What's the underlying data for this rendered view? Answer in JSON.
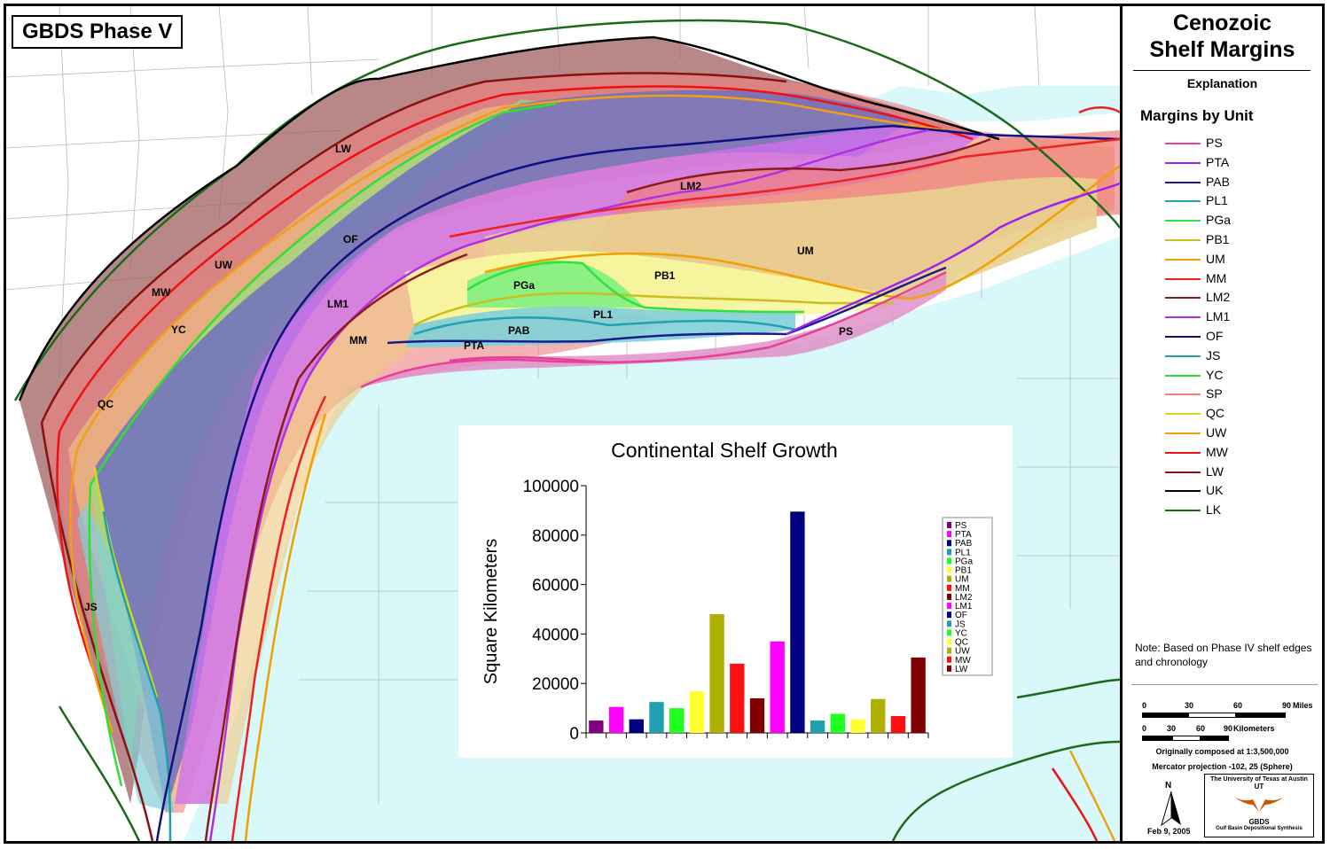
{
  "map": {
    "title": "GBDS Phase V",
    "labels": {
      "lw": "LW",
      "of": "OF",
      "uw": "UW",
      "mw": "MW",
      "yc": "YC",
      "qc": "QC",
      "js": "JS",
      "lm1": "LM1",
      "mm": "MM",
      "lm2": "LM2",
      "um": "UM",
      "pb1": "PB1",
      "pga": "PGa",
      "pl1": "PL1",
      "pab": "PAB",
      "pta": "PTA",
      "ps": "PS"
    }
  },
  "legend": {
    "title_line1": "Cenozoic",
    "title_line2": "Shelf Margins",
    "explanation": "Explanation",
    "heading": "Margins by Unit",
    "items": [
      {
        "label": "PS",
        "color": "#e8409a"
      },
      {
        "label": "PTA",
        "color": "#a020f0"
      },
      {
        "label": "PAB",
        "color": "#1a1a8c"
      },
      {
        "label": "PL1",
        "color": "#20a0b0"
      },
      {
        "label": "PGa",
        "color": "#30e040"
      },
      {
        "label": "PB1",
        "color": "#c8c020"
      },
      {
        "label": "UM",
        "color": "#f0a000"
      },
      {
        "label": "MM",
        "color": "#ee2020"
      },
      {
        "label": "LM2",
        "color": "#8b1a1a"
      },
      {
        "label": "LM1",
        "color": "#b030e0"
      },
      {
        "label": "OF",
        "color": "#101080"
      },
      {
        "label": "JS",
        "color": "#20a0a0"
      },
      {
        "label": "YC",
        "color": "#30e030"
      },
      {
        "label": "SP",
        "color": "#f08070"
      },
      {
        "label": "QC",
        "color": "#d8d820"
      },
      {
        "label": "UW",
        "color": "#f0a010"
      },
      {
        "label": "MW",
        "color": "#f01010"
      },
      {
        "label": "LW",
        "color": "#8b1010"
      },
      {
        "label": "UK",
        "color": "#000000"
      },
      {
        "label": "LK",
        "color": "#1a6a1a"
      }
    ],
    "note": "Note: Based on Phase IV shelf edges and chronology",
    "scale": {
      "miles_ticks": [
        "0",
        "30",
        "60",
        "90"
      ],
      "miles_unit": "Miles",
      "km_ticks": [
        "0",
        "30",
        "60",
        "90"
      ],
      "km_unit": "Kilometers"
    },
    "composed": "Originally composed at 1:3,500,000",
    "projection": "Mercator projection -102, 25 (Sphere)",
    "north": "N",
    "date": "Feb 9, 2005",
    "logo": {
      "line1": "The University of Texas at Austin",
      "ut": "UT",
      "gbds": "GBDS",
      "sub": "Gulf Basin Depositional Synthesis"
    }
  },
  "chart_data": {
    "type": "bar",
    "title": "Continental Shelf Growth",
    "ylabel": "Square Kilometers",
    "xlabel": "",
    "ylim": [
      0,
      100000
    ],
    "yticks": [
      0,
      20000,
      40000,
      60000,
      80000,
      100000
    ],
    "categories": [
      "PS",
      "PTA",
      "PAB",
      "PL1",
      "PGa",
      "PB1",
      "UM",
      "MM",
      "LM2",
      "LM1",
      "OF",
      "JS",
      "YC",
      "QC",
      "UW",
      "MW",
      "LW"
    ],
    "values": [
      5000,
      10500,
      5500,
      12500,
      10000,
      16800,
      48000,
      28000,
      14000,
      37000,
      89500,
      5000,
      7700,
      5500,
      13700,
      6800,
      30500
    ],
    "colors": [
      "#800080",
      "#ff00ff",
      "#000080",
      "#20a0b0",
      "#20ff20",
      "#ffff30",
      "#b0b000",
      "#ff1010",
      "#800000",
      "#ff00ff",
      "#000080",
      "#20a0b0",
      "#20ff20",
      "#ffff30",
      "#b0b000",
      "#ff1010",
      "#800000"
    ],
    "legend_position": "right",
    "grid": false
  }
}
